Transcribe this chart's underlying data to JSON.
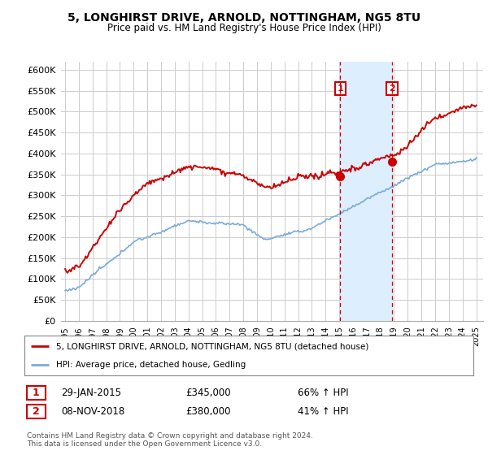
{
  "title": "5, LONGHIRST DRIVE, ARNOLD, NOTTINGHAM, NG5 8TU",
  "subtitle": "Price paid vs. HM Land Registry's House Price Index (HPI)",
  "ylim": [
    0,
    620000
  ],
  "yticks": [
    0,
    50000,
    100000,
    150000,
    200000,
    250000,
    300000,
    350000,
    400000,
    450000,
    500000,
    550000,
    600000
  ],
  "sale1_year": 2015.08,
  "sale1_price": 345000,
  "sale2_year": 2018.85,
  "sale2_price": 380000,
  "hpi_color": "#7aabdb",
  "highlight_color": "#ddeeff",
  "property_color": "#cc0000",
  "background_color": "#ffffff",
  "grid_color": "#cccccc",
  "legend_entry1": "5, LONGHIRST DRIVE, ARNOLD, NOTTINGHAM, NG5 8TU (detached house)",
  "legend_entry2": "HPI: Average price, detached house, Gedling",
  "table_row1": [
    "1",
    "29-JAN-2015",
    "£345,000",
    "66% ↑ HPI"
  ],
  "table_row2": [
    "2",
    "08-NOV-2018",
    "£380,000",
    "41% ↑ HPI"
  ],
  "footnote": "Contains HM Land Registry data © Crown copyright and database right 2024.\nThis data is licensed under the Open Government Licence v3.0."
}
